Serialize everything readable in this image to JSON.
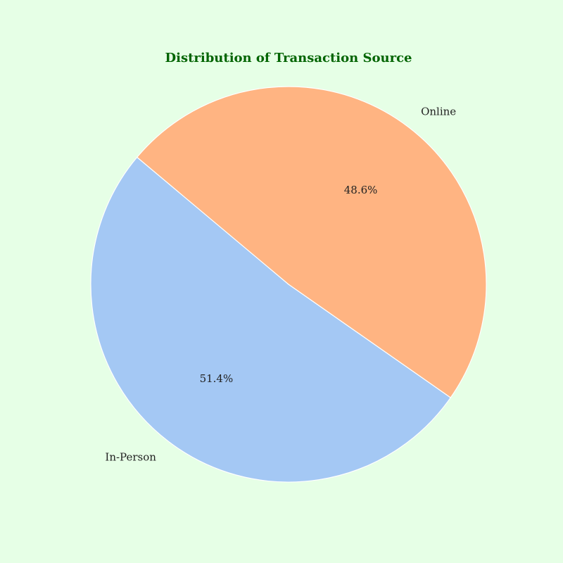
{
  "chart_data": {
    "type": "pie",
    "title": "Distribution of Transaction Source",
    "title_color": "#006400",
    "background_color": "#e6ffe6",
    "start_angle_deg": 140,
    "direction": "counterclockwise",
    "slices": [
      {
        "label": "In-Person",
        "value": 51.4,
        "pct_label": "51.4%",
        "color": "#a4c8f4"
      },
      {
        "label": "Online",
        "value": 48.6,
        "pct_label": "48.6%",
        "color": "#ffb482"
      }
    ]
  }
}
